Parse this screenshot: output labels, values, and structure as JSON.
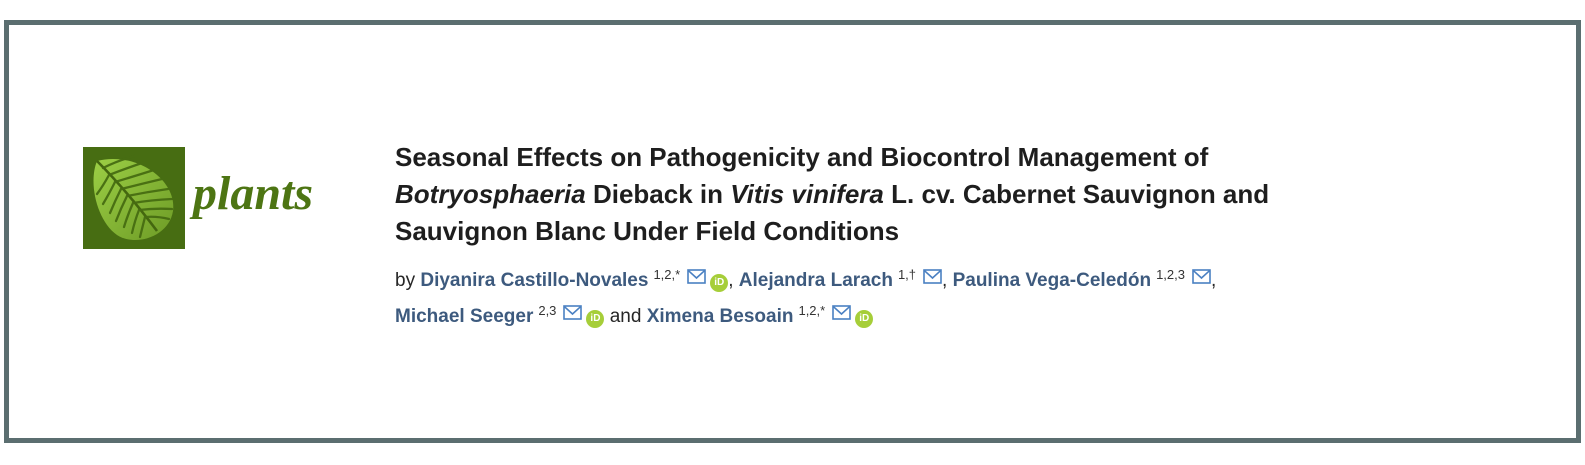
{
  "journal": {
    "name": "plants"
  },
  "article": {
    "title_lines": [
      [
        {
          "text": "Seasonal Effects on Pathogenicity and Biocontrol Management of",
          "italic": false
        }
      ],
      [
        {
          "text": "Botryosphaeria",
          "italic": true
        },
        {
          "text": " Dieback in ",
          "italic": false
        },
        {
          "text": "Vitis vinifera",
          "italic": true
        },
        {
          "text": " L. cv. Cabernet Sauvignon and",
          "italic": false
        }
      ],
      [
        {
          "text": "Sauvignon Blanc Under Field Conditions",
          "italic": false
        }
      ]
    ],
    "byline": {
      "prefix": "by ",
      "authors": [
        {
          "name": "Diyanira Castillo-Novales",
          "superscript": "1,2,*",
          "email_icon": true,
          "orcid_icon": true,
          "separator": ", ",
          "break_after": false
        },
        {
          "name": "Alejandra Larach",
          "superscript": "1,†",
          "email_icon": true,
          "orcid_icon": false,
          "separator": ", ",
          "break_after": false
        },
        {
          "name": "Paulina Vega-Celedón",
          "superscript": "1,2,3",
          "email_icon": true,
          "orcid_icon": false,
          "separator": ",",
          "break_after": true
        },
        {
          "name": "Michael Seeger",
          "superscript": "2,3",
          "email_icon": true,
          "orcid_icon": true,
          "separator": " and ",
          "break_after": false
        },
        {
          "name": "Ximena Besoain",
          "superscript": "1,2,*",
          "email_icon": true,
          "orcid_icon": true,
          "separator": "",
          "break_after": false
        }
      ]
    }
  },
  "icons": {
    "email_icon_name": "envelope-icon",
    "orcid_icon_name": "orcid-icon",
    "orcid_label": "iD",
    "logo_icon_name": "plants-leaf-icon"
  },
  "colors": {
    "frame_border": "#5b6e70",
    "title_text": "#1e1e1e",
    "body_text": "#262626",
    "author_link": "#3d5a7e",
    "superscript_text": "#333333",
    "envelope_blue": "#4a80c2",
    "orcid_green": "#a6ce39",
    "journal_wordmark_green": "#4d7513",
    "logo_background_green": "#476d12",
    "leaf_light_green": "#9ccf45",
    "leaf_dark_green": "#6d9b26",
    "leaf_midrib_green": "#44670f"
  }
}
